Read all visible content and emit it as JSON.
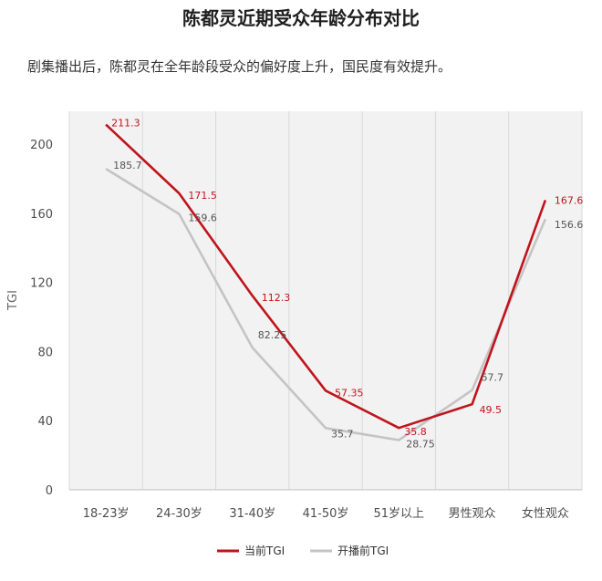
{
  "title": "陈都灵近期受众年龄分布对比",
  "subtitle": "剧集播出后，陈都灵在全年龄段受众的偏好度上升，国民度有效提升。",
  "chart_data": {
    "type": "line",
    "title": "",
    "xlabel": "",
    "ylabel": "TGI",
    "ylim": [
      0,
      220
    ],
    "yticks": [
      "0",
      "40",
      "80",
      "120",
      "160",
      "200"
    ],
    "categories": [
      "18-23岁",
      "24-30岁",
      "31-40岁",
      "41-50岁",
      "51岁以上",
      "男性观众",
      "女性观众"
    ],
    "grid": "vertical",
    "legend": "bottom",
    "series": [
      {
        "name": "当前TGI",
        "color": "#c0141c",
        "values": [
          211.3,
          171.5,
          112.3,
          57.35,
          35.8,
          49.5,
          167.6
        ],
        "labels": [
          "211.3",
          "171.5",
          "112.3",
          "57.35",
          "35.8",
          "49.5",
          "167.6"
        ]
      },
      {
        "name": "开播前TGI",
        "color": "#c4c4c4",
        "values": [
          185.7,
          159.6,
          82.25,
          35.7,
          28.75,
          57.7,
          156.6
        ],
        "labels": [
          "185.7",
          "159.6",
          "82.25",
          "35.7",
          "28.75",
          "57.7",
          "156.6"
        ]
      }
    ]
  }
}
